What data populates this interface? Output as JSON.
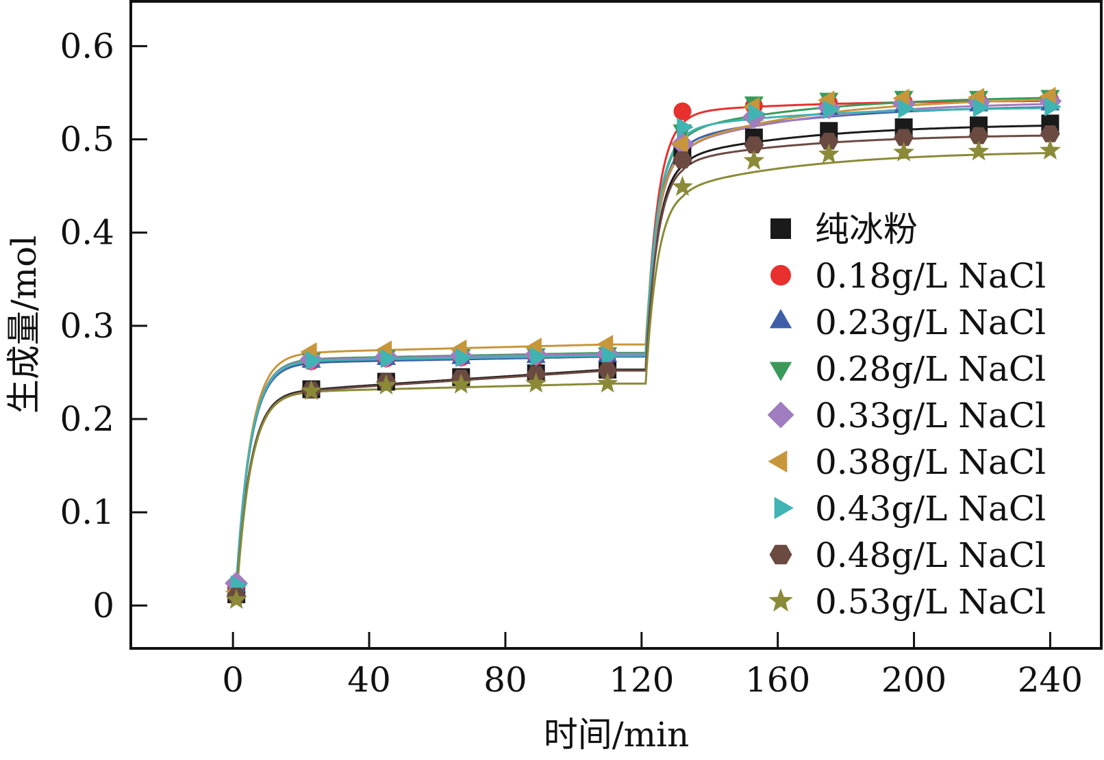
{
  "chart_data": {
    "type": "line",
    "title": "",
    "xlabel": "时间/min",
    "ylabel": "生成量/mol",
    "xlim": [
      -30,
      255
    ],
    "ylim": [
      -0.046,
      0.648
    ],
    "xticks": [
      "0",
      "40",
      "80",
      "120",
      "160",
      "200",
      "240"
    ],
    "yticks": [
      "0",
      "0.1",
      "0.2",
      "0.3",
      "0.4",
      "0.5",
      "0.6"
    ],
    "legend_position": "right",
    "grid": false,
    "x": [
      1,
      23,
      45,
      67,
      89,
      110,
      132,
      153,
      175,
      197,
      219,
      240
    ],
    "series": [
      {
        "name": "纯冰粉",
        "marker": "square",
        "color": "#1a1a1a",
        "values": [
          0.012,
          0.232,
          0.24,
          0.245,
          0.249,
          0.253,
          0.483,
          0.502,
          0.509,
          0.513,
          0.515,
          0.517
        ]
      },
      {
        "name": "0.18g/L NaCl",
        "marker": "circle",
        "color": "#e8302e",
        "values": [
          0.02,
          0.262,
          0.265,
          0.266,
          0.267,
          0.268,
          0.53,
          0.536,
          0.539,
          0.54,
          0.541,
          0.542
        ]
      },
      {
        "name": "0.23g/L NaCl",
        "marker": "triangle-up",
        "color": "#3f5ea8",
        "values": [
          0.02,
          0.261,
          0.264,
          0.265,
          0.266,
          0.267,
          0.5,
          0.526,
          0.532,
          0.535,
          0.536,
          0.537
        ]
      },
      {
        "name": "0.28g/L NaCl",
        "marker": "triangle-down",
        "color": "#3a9a5a",
        "values": [
          0.018,
          0.265,
          0.268,
          0.269,
          0.27,
          0.271,
          0.51,
          0.54,
          0.544,
          0.546,
          0.546,
          0.547
        ]
      },
      {
        "name": "0.33g/L NaCl",
        "marker": "diamond",
        "color": "#a07cc0",
        "values": [
          0.024,
          0.264,
          0.267,
          0.268,
          0.269,
          0.27,
          0.495,
          0.524,
          0.534,
          0.538,
          0.54,
          0.541
        ]
      },
      {
        "name": "0.38g/L NaCl",
        "marker": "triangle-left",
        "color": "#c8963a",
        "values": [
          0.015,
          0.272,
          0.274,
          0.275,
          0.277,
          0.28,
          0.495,
          0.535,
          0.542,
          0.544,
          0.545,
          0.546
        ]
      },
      {
        "name": "0.43g/L NaCl",
        "marker": "triangle-right",
        "color": "#40b3b3",
        "values": [
          0.022,
          0.263,
          0.265,
          0.266,
          0.267,
          0.268,
          0.513,
          0.528,
          0.532,
          0.533,
          0.534,
          0.535
        ]
      },
      {
        "name": "0.48g/L NaCl",
        "marker": "hexagon",
        "color": "#6b4a42",
        "values": [
          0.01,
          0.231,
          0.24,
          0.244,
          0.248,
          0.252,
          0.478,
          0.494,
          0.498,
          0.502,
          0.504,
          0.506
        ]
      },
      {
        "name": "0.53g/L NaCl",
        "marker": "star",
        "color": "#8a8a38",
        "values": [
          0.006,
          0.23,
          0.236,
          0.237,
          0.238,
          0.238,
          0.449,
          0.477,
          0.484,
          0.486,
          0.487,
          0.488
        ]
      }
    ]
  }
}
